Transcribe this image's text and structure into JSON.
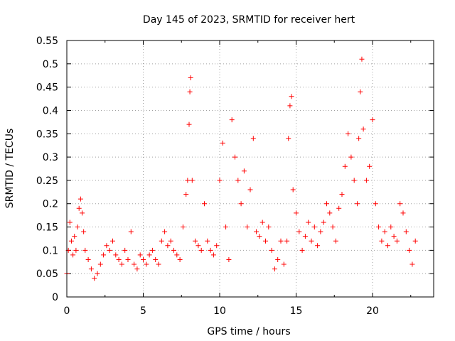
{
  "chart_data": {
    "type": "scatter",
    "title": "Day 145 of 2023, SRMTID for receiver hert",
    "xlabel": "GPS time / hours",
    "ylabel": "SRMTID / TECUs",
    "xlim": [
      0,
      24
    ],
    "ylim": [
      0,
      0.55
    ],
    "xticks": [
      0,
      5,
      10,
      15,
      20
    ],
    "yticks": [
      0,
      0.05,
      0.1,
      0.15,
      0.2,
      0.25,
      0.3,
      0.35,
      0.4,
      0.45,
      0.5,
      0.55
    ],
    "grid": true,
    "marker": "+",
    "marker_color": "#ff0000",
    "series": [
      {
        "name": "SRMTID",
        "points": [
          [
            0.0,
            0.05
          ],
          [
            0.1,
            0.1
          ],
          [
            0.2,
            0.16
          ],
          [
            0.3,
            0.12
          ],
          [
            0.4,
            0.09
          ],
          [
            0.5,
            0.13
          ],
          [
            0.6,
            0.1
          ],
          [
            0.7,
            0.15
          ],
          [
            0.8,
            0.19
          ],
          [
            0.9,
            0.21
          ],
          [
            1.0,
            0.18
          ],
          [
            1.1,
            0.14
          ],
          [
            1.2,
            0.1
          ],
          [
            1.4,
            0.08
          ],
          [
            1.6,
            0.06
          ],
          [
            1.8,
            0.04
          ],
          [
            2.0,
            0.05
          ],
          [
            2.2,
            0.07
          ],
          [
            2.4,
            0.09
          ],
          [
            2.6,
            0.11
          ],
          [
            2.8,
            0.1
          ],
          [
            3.0,
            0.12
          ],
          [
            3.2,
            0.09
          ],
          [
            3.4,
            0.08
          ],
          [
            3.6,
            0.07
          ],
          [
            3.8,
            0.1
          ],
          [
            4.0,
            0.08
          ],
          [
            4.2,
            0.14
          ],
          [
            4.4,
            0.07
          ],
          [
            4.6,
            0.06
          ],
          [
            4.8,
            0.09
          ],
          [
            5.0,
            0.08
          ],
          [
            5.2,
            0.07
          ],
          [
            5.4,
            0.09
          ],
          [
            5.6,
            0.1
          ],
          [
            5.8,
            0.08
          ],
          [
            6.0,
            0.07
          ],
          [
            6.2,
            0.12
          ],
          [
            6.4,
            0.14
          ],
          [
            6.6,
            0.11
          ],
          [
            6.8,
            0.12
          ],
          [
            7.0,
            0.1
          ],
          [
            7.2,
            0.09
          ],
          [
            7.4,
            0.08
          ],
          [
            7.6,
            0.15
          ],
          [
            7.8,
            0.22
          ],
          [
            7.9,
            0.25
          ],
          [
            8.0,
            0.37
          ],
          [
            8.05,
            0.44
          ],
          [
            8.1,
            0.47
          ],
          [
            8.2,
            0.25
          ],
          [
            8.4,
            0.12
          ],
          [
            8.6,
            0.11
          ],
          [
            8.8,
            0.1
          ],
          [
            9.0,
            0.2
          ],
          [
            9.2,
            0.12
          ],
          [
            9.4,
            0.1
          ],
          [
            9.6,
            0.09
          ],
          [
            9.8,
            0.11
          ],
          [
            10.0,
            0.25
          ],
          [
            10.2,
            0.33
          ],
          [
            10.4,
            0.15
          ],
          [
            10.6,
            0.08
          ],
          [
            10.8,
            0.38
          ],
          [
            11.0,
            0.3
          ],
          [
            11.2,
            0.25
          ],
          [
            11.4,
            0.2
          ],
          [
            11.6,
            0.27
          ],
          [
            11.8,
            0.15
          ],
          [
            12.0,
            0.23
          ],
          [
            12.2,
            0.34
          ],
          [
            12.4,
            0.14
          ],
          [
            12.6,
            0.13
          ],
          [
            12.8,
            0.16
          ],
          [
            13.0,
            0.12
          ],
          [
            13.2,
            0.15
          ],
          [
            13.4,
            0.1
          ],
          [
            13.6,
            0.06
          ],
          [
            13.8,
            0.08
          ],
          [
            14.0,
            0.12
          ],
          [
            14.2,
            0.07
          ],
          [
            14.4,
            0.12
          ],
          [
            14.5,
            0.34
          ],
          [
            14.6,
            0.41
          ],
          [
            14.7,
            0.43
          ],
          [
            14.8,
            0.23
          ],
          [
            15.0,
            0.18
          ],
          [
            15.2,
            0.14
          ],
          [
            15.4,
            0.1
          ],
          [
            15.6,
            0.13
          ],
          [
            15.8,
            0.16
          ],
          [
            16.0,
            0.12
          ],
          [
            16.2,
            0.15
          ],
          [
            16.4,
            0.11
          ],
          [
            16.6,
            0.14
          ],
          [
            16.8,
            0.16
          ],
          [
            17.0,
            0.2
          ],
          [
            17.2,
            0.18
          ],
          [
            17.4,
            0.15
          ],
          [
            17.6,
            0.12
          ],
          [
            17.8,
            0.19
          ],
          [
            18.0,
            0.22
          ],
          [
            18.2,
            0.28
          ],
          [
            18.4,
            0.35
          ],
          [
            18.6,
            0.3
          ],
          [
            18.8,
            0.25
          ],
          [
            19.0,
            0.2
          ],
          [
            19.1,
            0.34
          ],
          [
            19.2,
            0.44
          ],
          [
            19.3,
            0.51
          ],
          [
            19.4,
            0.36
          ],
          [
            19.6,
            0.25
          ],
          [
            19.8,
            0.28
          ],
          [
            20.0,
            0.38
          ],
          [
            20.2,
            0.2
          ],
          [
            20.4,
            0.15
          ],
          [
            20.6,
            0.12
          ],
          [
            20.8,
            0.14
          ],
          [
            21.0,
            0.11
          ],
          [
            21.2,
            0.15
          ],
          [
            21.4,
            0.13
          ],
          [
            21.6,
            0.12
          ],
          [
            21.8,
            0.2
          ],
          [
            22.0,
            0.18
          ],
          [
            22.2,
            0.14
          ],
          [
            22.4,
            0.1
          ],
          [
            22.6,
            0.07
          ],
          [
            22.8,
            0.12
          ]
        ]
      }
    ]
  }
}
